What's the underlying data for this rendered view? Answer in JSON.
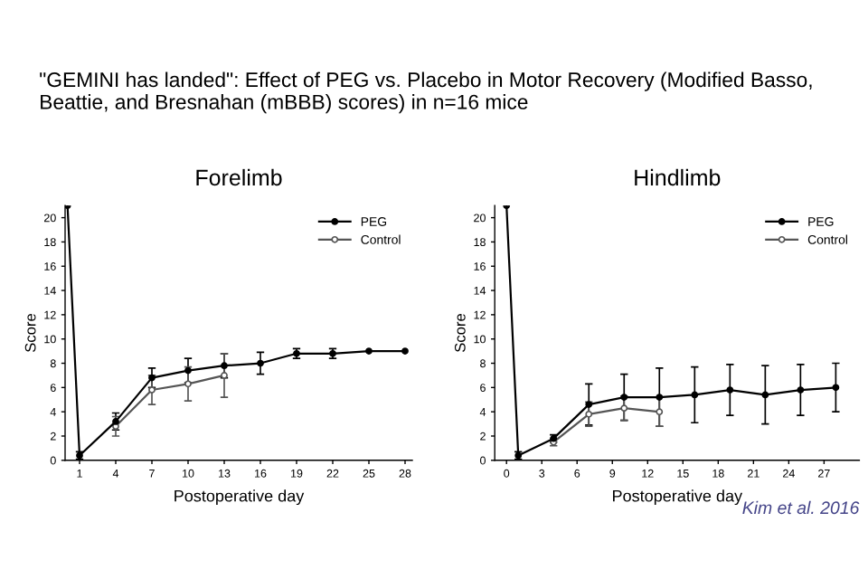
{
  "chart_data": [
    {
      "type": "line",
      "title": "Forelimb",
      "xlabel": "Postoperative day",
      "ylabel": "Score",
      "annotations": [
        "\"GEMINI has landed\": Effect of PEG vs. Placebo in Motor Recovery (Modified Basso, Beattie, and Bresnahan (mBBB) scores) in n=16 mice"
      ],
      "xlim": [
        -0.2,
        28.6
      ],
      "xticks": [
        1,
        4,
        7,
        10,
        13,
        16,
        19,
        22,
        25,
        28
      ],
      "ylim": [
        0,
        21
      ],
      "yticks": [
        0,
        2,
        4,
        6,
        8,
        10,
        12,
        14,
        16,
        18,
        20
      ],
      "grid": false,
      "legend": "top right",
      "marker": "circle",
      "series": [
        {
          "name": "PEG",
          "color": "#000000",
          "x": [
            0,
            1,
            4,
            7,
            10,
            13,
            16,
            19,
            22,
            25,
            28
          ],
          "values": [
            21,
            0.4,
            3.2,
            6.8,
            7.4,
            7.8,
            8.0,
            8.8,
            8.8,
            9.0,
            9.0
          ],
          "errors": [
            null,
            0.3,
            0.7,
            0.8,
            1.0,
            1.0,
            0.9,
            0.4,
            0.4,
            null,
            null
          ]
        },
        {
          "name": "Control",
          "color": "#555555",
          "x": [
            4,
            7,
            10,
            13
          ],
          "values": [
            2.8,
            5.8,
            6.3,
            7.0
          ],
          "errors": [
            0.8,
            1.2,
            1.4,
            1.8
          ]
        }
      ]
    },
    {
      "type": "line",
      "title": "Hindlimb",
      "xlabel": "Postoperative day",
      "ylabel": "Score",
      "annotations": [
        "Kim et al. 2016"
      ],
      "xlim": [
        -1,
        30
      ],
      "xticks": [
        0,
        3,
        6,
        9,
        12,
        15,
        18,
        21,
        24,
        27
      ],
      "ylim": [
        0,
        21
      ],
      "yticks": [
        0,
        2,
        4,
        6,
        8,
        10,
        12,
        14,
        16,
        18,
        20
      ],
      "grid": false,
      "legend": "top right",
      "marker": "circle",
      "series": [
        {
          "name": "PEG",
          "color": "#000000",
          "x": [
            0,
            1,
            4,
            7,
            10,
            13,
            16,
            19,
            22,
            25,
            28
          ],
          "values": [
            21,
            0.4,
            1.8,
            4.6,
            5.2,
            5.2,
            5.4,
            5.8,
            5.4,
            5.8,
            6.0
          ],
          "errors": [
            null,
            0.3,
            0.3,
            1.7,
            1.9,
            2.4,
            2.3,
            2.1,
            2.4,
            2.1,
            2.0
          ]
        },
        {
          "name": "Control",
          "color": "#555555",
          "x": [
            4,
            7,
            10,
            13
          ],
          "values": [
            1.5,
            3.8,
            4.3,
            4.0
          ],
          "errors": [
            0.3,
            1.0,
            1.0,
            1.2
          ]
        }
      ]
    }
  ]
}
